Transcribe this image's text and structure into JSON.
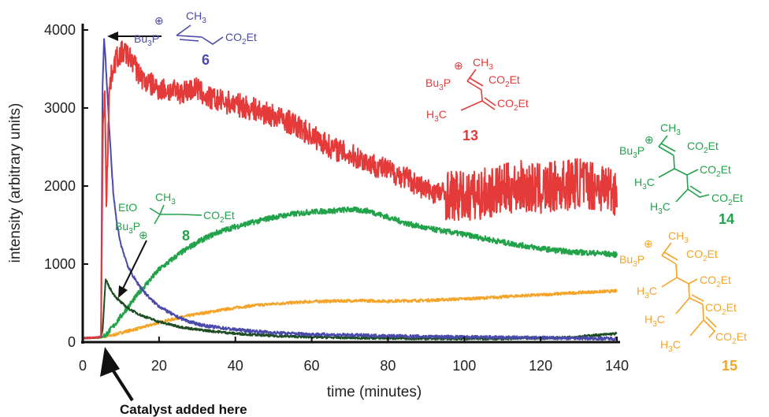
{
  "chart_data": {
    "type": "line",
    "title": "",
    "xlabel": "time (minutes)",
    "ylabel": "intensity (arbitrary units)",
    "xlim": [
      0,
      140
    ],
    "ylim": [
      0,
      4000
    ],
    "xticks": [
      "0",
      "20",
      "40",
      "60",
      "80",
      "100",
      "120",
      "140"
    ],
    "yticks": [
      "0",
      "1000",
      "2000",
      "3000",
      "4000"
    ],
    "grid": false,
    "series": [
      {
        "name": "6",
        "color": "#4a4aaa",
        "x": [
          0,
          4,
          4.8,
          5.2,
          5.6,
          6,
          7,
          8,
          9,
          10,
          12,
          14,
          16,
          18,
          20,
          24,
          28,
          32,
          40,
          50,
          60,
          70,
          80,
          90,
          100,
          110,
          120,
          130,
          140
        ],
        "y": [
          50,
          60,
          70,
          3300,
          3880,
          3600,
          2700,
          1900,
          1500,
          1250,
          950,
          780,
          650,
          540,
          460,
          340,
          260,
          210,
          160,
          120,
          100,
          90,
          80,
          70,
          65,
          60,
          55,
          50,
          45
        ]
      },
      {
        "name": "13",
        "color": "#e43a3a",
        "x": [
          0,
          4,
          4.8,
          5.3,
          5.8,
          6.2,
          7,
          8,
          9,
          10,
          11,
          12,
          13,
          14,
          16,
          18,
          20,
          25,
          30,
          32,
          35,
          40,
          45,
          50,
          55,
          60,
          65,
          70,
          75,
          80,
          85,
          90,
          95,
          100,
          105,
          110,
          115,
          120,
          125,
          130,
          135,
          140
        ],
        "y": [
          50,
          60,
          80,
          2800,
          3150,
          1850,
          3250,
          3550,
          3650,
          3700,
          3720,
          3650,
          3620,
          3500,
          3350,
          3300,
          3250,
          3200,
          3250,
          3150,
          3100,
          3050,
          2980,
          2900,
          2800,
          2650,
          2500,
          2400,
          2300,
          2200,
          2100,
          1950,
          1900,
          1850,
          1900,
          1950,
          2000,
          1950,
          2000,
          2050,
          2000,
          1950
        ]
      },
      {
        "name": "8",
        "color": "#1e4d24",
        "x": [
          0,
          4,
          4.8,
          5.2,
          6,
          7,
          8,
          9,
          10,
          12,
          15,
          20,
          25,
          30,
          40,
          50,
          60,
          70,
          80,
          90,
          100,
          110,
          120,
          125,
          130,
          135,
          140
        ],
        "y": [
          50,
          60,
          70,
          150,
          800,
          700,
          620,
          560,
          510,
          430,
          350,
          260,
          200,
          160,
          110,
          80,
          65,
          55,
          50,
          45,
          45,
          45,
          50,
          55,
          70,
          90,
          110
        ]
      },
      {
        "name": "14",
        "color": "#22a24a",
        "x": [
          0,
          4,
          5,
          6,
          8,
          10,
          15,
          20,
          25,
          30,
          35,
          40,
          45,
          50,
          55,
          60,
          65,
          70,
          75,
          80,
          85,
          90,
          95,
          100,
          105,
          110,
          115,
          120,
          125,
          130,
          135,
          140
        ],
        "y": [
          50,
          60,
          65,
          90,
          200,
          330,
          650,
          930,
          1120,
          1280,
          1400,
          1480,
          1540,
          1600,
          1640,
          1670,
          1680,
          1700,
          1680,
          1600,
          1520,
          1460,
          1420,
          1380,
          1330,
          1280,
          1240,
          1200,
          1170,
          1150,
          1140,
          1120
        ]
      },
      {
        "name": "15",
        "color": "#f4a428",
        "x": [
          0,
          4,
          5,
          8,
          10,
          15,
          20,
          25,
          30,
          35,
          40,
          45,
          50,
          55,
          60,
          65,
          70,
          75,
          80,
          85,
          90,
          95,
          100,
          105,
          110,
          115,
          120,
          125,
          130,
          135,
          140
        ],
        "y": [
          50,
          55,
          60,
          90,
          120,
          180,
          250,
          310,
          360,
          400,
          440,
          470,
          490,
          505,
          520,
          525,
          530,
          530,
          525,
          530,
          535,
          545,
          555,
          565,
          580,
          595,
          605,
          620,
          635,
          645,
          655
        ]
      }
    ],
    "annotations": [
      {
        "text": "Catalyst added here"
      }
    ]
  },
  "structures": {
    "s6": {
      "substituent": "CH",
      "sub3": "3",
      "phos": "Bu",
      "phos_sub": "3",
      "phos_p": "P",
      "plus": "⊕",
      "ester": "CO",
      "ester_sub": "2",
      "ester_end": "Et",
      "number": "6"
    },
    "s8": {
      "eto": "EtO",
      "substituent": "CH",
      "sub3": "3",
      "phos": "Bu",
      "phos_sub": "3",
      "phos_p": "P",
      "plus": "⊕",
      "ester": "CO",
      "ester_sub": "2",
      "ester_end": "Et",
      "number": "8"
    },
    "s13": {
      "substituent": "CH",
      "sub3": "3",
      "phos": "Bu",
      "phos_sub": "3",
      "phos_p": "P",
      "plus": "⊕",
      "ester": "CO",
      "ester_sub": "2",
      "ester_end": "Et",
      "methyl": "H",
      "methyl_sub": "3",
      "methyl_c": "C",
      "number": "13"
    },
    "s14": {
      "substituent": "CH",
      "sub3": "3",
      "phos": "Bu",
      "phos_sub": "3",
      "phos_p": "P",
      "plus": "⊕",
      "ester": "CO",
      "ester_sub": "2",
      "ester_end": "Et",
      "methyl": "H",
      "methyl_sub": "3",
      "methyl_c": "C",
      "number": "14"
    },
    "s15": {
      "substituent": "CH",
      "sub3": "3",
      "phos": "Bu",
      "phos_sub": "3",
      "phos_p": "P",
      "plus": "⊕",
      "ester": "CO",
      "ester_sub": "2",
      "ester_end": "Et",
      "methyl": "H",
      "methyl_sub": "3",
      "methyl_c": "C",
      "number": "15"
    }
  }
}
